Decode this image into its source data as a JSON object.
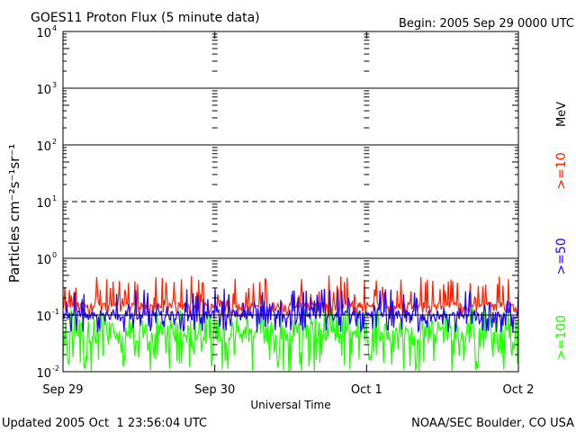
{
  "chart_data": {
    "type": "line",
    "title": "GOES11 Proton Flux (5 minute data)",
    "begin_label": "Begin: 2005 Sep 29 0000 UTC",
    "ylabel": "Particles cm⁻²s⁻¹sr⁻¹",
    "xlabel": "Universal Time",
    "yscale": "log",
    "ylim": [
      0.01,
      10000
    ],
    "yticks": [
      {
        "value": 0.01,
        "base": "10",
        "exp": "-2"
      },
      {
        "value": 0.1,
        "base": "10",
        "exp": "-1"
      },
      {
        "value": 1,
        "base": "10",
        "exp": "0"
      },
      {
        "value": 10,
        "base": "10",
        "exp": "1"
      },
      {
        "value": 100,
        "base": "10",
        "exp": "2"
      },
      {
        "value": 1000,
        "base": "10",
        "exp": "3"
      },
      {
        "value": 10000,
        "base": "10",
        "exp": "4"
      }
    ],
    "xlim_days": [
      0,
      3
    ],
    "xticks": [
      "Sep 29",
      "Sep 30",
      "Oct 1",
      "Oct 2"
    ],
    "thresholds": [
      {
        "value": 10,
        "style": "dashed"
      },
      {
        "value": 100,
        "style": "solid"
      },
      {
        "value": 1000,
        "style": "solid"
      },
      {
        "value": 1,
        "style": "solid"
      },
      {
        "value": 0.1,
        "style": "solid"
      }
    ],
    "series": [
      {
        "name": ">=10",
        "color": "#ff2000",
        "typical": 0.15,
        "range": [
          0.1,
          0.5
        ]
      },
      {
        "name": ">=50",
        "color": "#2000ff",
        "typical": 0.1,
        "range": [
          0.05,
          0.3
        ]
      },
      {
        "name": ">=100",
        "color": "#20ff00",
        "typical": 0.05,
        "range": [
          0.01,
          0.15
        ]
      }
    ],
    "legend_unit": "MeV",
    "grid": false,
    "footer_left": "Updated 2005 Oct  1 23:56:04 UTC",
    "footer_right": "NOAA/SEC Boulder, CO USA"
  }
}
